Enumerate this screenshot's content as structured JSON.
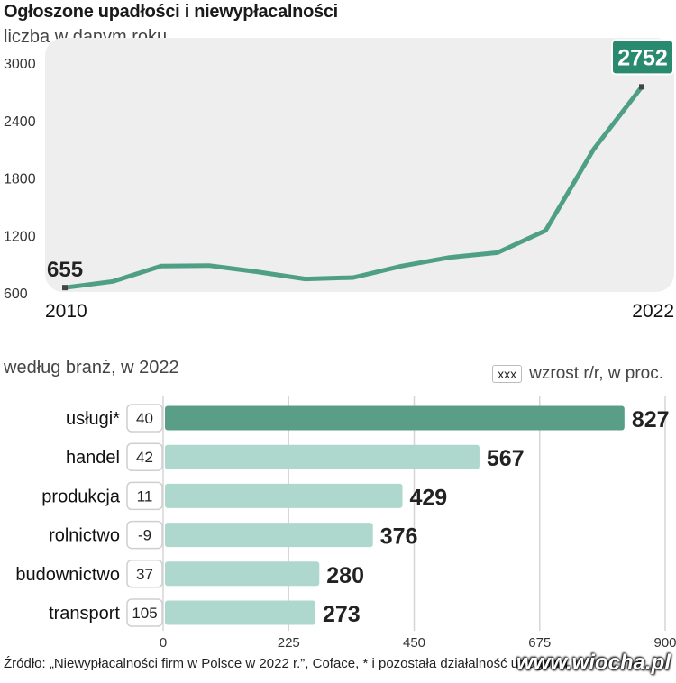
{
  "header": {
    "title": "Ogłoszone upadłości i niewypłacalności",
    "subtitle": "liczba w danym roku"
  },
  "bar_section": {
    "subtitle": "według branż, w 2022",
    "legend_box": "xxx",
    "legend_text": "wzrost r/r, w proc."
  },
  "source": "Źródło: „Niewypłacalności firm w Polsce w 2022 r.”, Coface, * i pozostała działalność usługowa",
  "watermark": "www.wiocha.pl",
  "colors": {
    "line": "#4f9f87",
    "bar_highlight": "#5a9e88",
    "bar": "#aed7cd",
    "panel": "#eeeeee",
    "label_box": "#2a8a6f"
  },
  "chart_data": [
    {
      "type": "line",
      "x": [
        2010,
        2011,
        2012,
        2013,
        2014,
        2015,
        2016,
        2017,
        2018,
        2019,
        2020,
        2021,
        2022
      ],
      "values": [
        655,
        720,
        880,
        885,
        820,
        745,
        760,
        880,
        970,
        1020,
        1250,
        2100,
        2752
      ],
      "ylim": [
        600,
        3000
      ],
      "yticks": [
        "600",
        "1200",
        "1800",
        "2400",
        "3000"
      ],
      "xtick_labels": [
        "2010",
        "2022"
      ],
      "start_label": "655",
      "end_label": "2752",
      "grid": false
    },
    {
      "type": "bar",
      "orientation": "horizontal",
      "categories": [
        "usługi*",
        "handel",
        "produkcja",
        "rolnictwo",
        "budownictwo",
        "transport"
      ],
      "values": [
        827,
        567,
        429,
        376,
        280,
        273
      ],
      "value_labels": [
        "827",
        "567",
        "429",
        "376",
        "280",
        "273"
      ],
      "growth_labels": [
        "40",
        "42",
        "11",
        "-9",
        "37",
        "105"
      ],
      "xlim": [
        0,
        900
      ],
      "xticks": [
        "0",
        "225",
        "450",
        "675",
        "900"
      ],
      "grid": true
    }
  ]
}
